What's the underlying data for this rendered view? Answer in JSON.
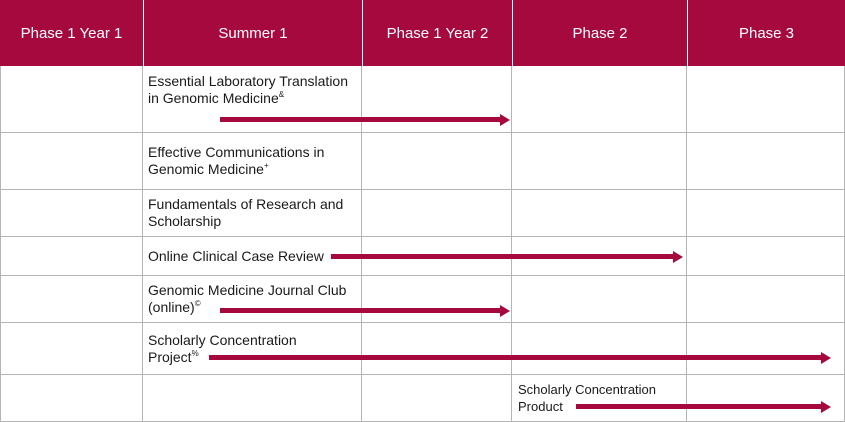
{
  "header": {
    "columns": [
      "Phase 1 Year 1",
      "Summer 1",
      "Phase 1 Year 2",
      "Phase 2",
      "Phase 3"
    ]
  },
  "rows": [
    {
      "label": "Essential Laboratory Translation in Genomic Medicine",
      "mark": "&"
    },
    {
      "label": "Effective Communications in Genomic Medicine",
      "mark": "+"
    },
    {
      "label": "Fundamentals of Research and Scholarship",
      "mark": ""
    },
    {
      "label": "Online Clinical Case Review",
      "mark": ""
    },
    {
      "label": "Genomic Medicine Journal Club (online)",
      "mark": "©"
    },
    {
      "label": "Scholarly Concentration Project",
      "mark": "%"
    },
    {
      "label": "Scholarly Concentration Product",
      "mark": ""
    }
  ],
  "colors": {
    "accent": "#a6093d",
    "gridline": "#b5b5b5"
  }
}
